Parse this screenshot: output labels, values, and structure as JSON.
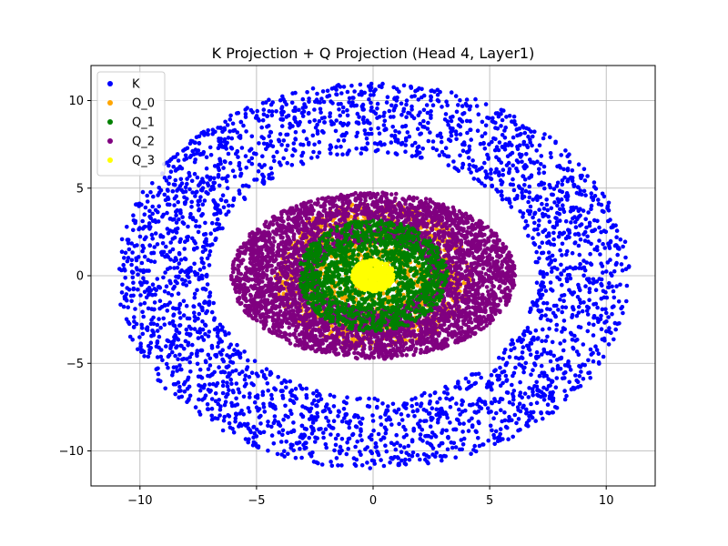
{
  "chart_data": {
    "type": "scatter",
    "title": "K Projection + Q Projection (Head 4, Layer1)",
    "xlabel": "",
    "ylabel": "",
    "xlim": [
      -12.1,
      12.1
    ],
    "ylim": [
      -12.0,
      12.0
    ],
    "x_ticks": [
      -10,
      -5,
      0,
      5,
      10
    ],
    "y_ticks": [
      -10,
      -5,
      0,
      5,
      10
    ],
    "x_tick_labels": [
      "−10",
      "−5",
      "0",
      "5",
      "10"
    ],
    "y_tick_labels": [
      "−10",
      "−5",
      "0",
      "5",
      "10"
    ],
    "grid": true,
    "legend_position": "top-left",
    "series": [
      {
        "name": "K",
        "color": "#0000ff",
        "shape": "ring",
        "center": [
          0,
          0
        ],
        "radius_range": [
          7.0,
          11.0
        ],
        "points": 3000
      },
      {
        "name": "Q_0",
        "color": "#ffa500",
        "shape": "disk",
        "center": [
          0,
          0
        ],
        "radius_range": [
          0,
          4.2
        ],
        "points": 1200
      },
      {
        "name": "Q_1",
        "color": "#008000",
        "shape": "disk",
        "center": [
          0,
          0
        ],
        "radius_range": [
          0,
          3.2
        ],
        "points": 1500
      },
      {
        "name": "Q_2",
        "color": "#800080",
        "shape": "ring",
        "center": [
          0,
          0
        ],
        "radius_range": [
          2.4,
          6.1
        ],
        "points": 4000
      },
      {
        "name": "Q_3",
        "color": "#ffff00",
        "shape": "disk",
        "center": [
          0,
          0
        ],
        "radius_range": [
          0,
          0.9
        ],
        "points": 500
      }
    ],
    "draw_order": [
      "K",
      "Q_0",
      "Q_2",
      "Q_1",
      "Q_3"
    ]
  }
}
